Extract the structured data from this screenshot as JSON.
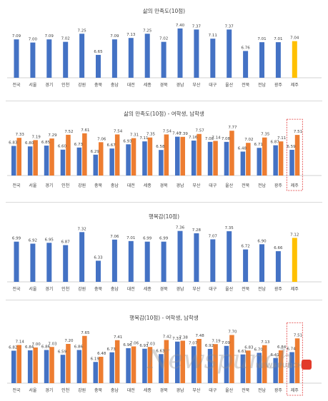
{
  "chart_data": [
    {
      "type": "bar",
      "title": "삶의 만족도(10점)",
      "categories": [
        "전국",
        "서울",
        "경기",
        "인천",
        "강원",
        "충북",
        "충남",
        "대전",
        "세종",
        "경북",
        "경남",
        "부산",
        "대구",
        "울산",
        "전북",
        "전남",
        "광주",
        "제주"
      ],
      "series": [
        {
          "values": [
            7.09,
            7.0,
            7.09,
            7.02,
            7.25,
            6.65,
            7.09,
            7.13,
            7.25,
            7.02,
            7.4,
            7.37,
            7.11,
            7.37,
            6.76,
            7.01,
            7.01,
            7.04
          ]
        }
      ],
      "highlight_index": 17,
      "ylim": [
        6.0,
        7.6
      ]
    },
    {
      "type": "bar",
      "title": "삶의 만족도(10점) - 여학생, 남학생",
      "categories": [
        "전국",
        "서울",
        "경기",
        "인천",
        "강원",
        "충북",
        "충남",
        "대전",
        "세종",
        "경북",
        "경남",
        "부산",
        "대구",
        "울산",
        "전북",
        "전남",
        "광주",
        "제주"
      ],
      "series": [
        {
          "values": [
            6.83,
            6.8,
            6.85,
            6.6,
            6.73,
            6.29,
            6.67,
            6.93,
            7.11,
            6.58,
            7.4,
            7.16,
            7.08,
            7.08,
            6.48,
            6.71,
            6.87,
            6.59
          ]
        },
        {
          "values": [
            7.33,
            7.19,
            7.29,
            7.52,
            7.61,
            7.06,
            7.54,
            7.31,
            7.35,
            7.54,
            7.39,
            7.57,
            7.14,
            7.77,
            7.02,
            7.35,
            7.11,
            7.51
          ]
        }
      ],
      "highlight_index": 17,
      "ylim": [
        5.0,
        8.0
      ]
    },
    {
      "type": "bar",
      "title": "행복감(10점)",
      "categories": [
        "전국",
        "서울",
        "경기",
        "인천",
        "강원",
        "충북",
        "충남",
        "대전",
        "세종",
        "경북",
        "경남",
        "부산",
        "대구",
        "울산",
        "전북",
        "전남",
        "광주",
        "제주"
      ],
      "series": [
        {
          "values": [
            6.99,
            6.92,
            6.95,
            6.87,
            7.32,
            6.33,
            7.06,
            7.01,
            6.99,
            6.99,
            7.36,
            7.28,
            7.07,
            7.35,
            6.72,
            6.9,
            6.66,
            7.12
          ]
        }
      ],
      "highlight_index": 17,
      "ylim": [
        5.6,
        7.5
      ]
    },
    {
      "type": "bar",
      "title": "행복감(10점) - 여학생, 남학생",
      "categories": [
        "전국",
        "서울",
        "경기",
        "인천",
        "강원",
        "충북",
        "충남",
        "대전",
        "세종",
        "경북",
        "경남",
        "부산",
        "대구",
        "울산",
        "전북",
        "전남",
        "광주",
        "제주"
      ],
      "series": [
        {
          "values": [
            6.82,
            6.84,
            6.86,
            6.59,
            6.86,
            6.19,
            6.73,
            6.96,
            6.93,
            6.63,
            7.33,
            7.07,
            6.92,
            7.09,
            6.61,
            6.7,
            6.41,
            6.74
          ]
        },
        {
          "values": [
            7.14,
            7.0,
            7.03,
            7.2,
            7.65,
            6.48,
            7.41,
            7.06,
            7.03,
            7.42,
            7.38,
            7.48,
            7.19,
            7.7,
            6.83,
            7.13,
            6.84,
            7.51
          ]
        }
      ],
      "highlight_index": 17,
      "ylim": [
        5.0,
        8.0
      ]
    }
  ],
  "colors": {
    "female": "#4472c4",
    "male": "#ed7d31",
    "highlight": "#ffc000",
    "label": "#404040",
    "highlight_box": "#e03030"
  },
  "watermark": {
    "brand": "Newspunch",
    "sub": "NEWSPUNCH"
  }
}
